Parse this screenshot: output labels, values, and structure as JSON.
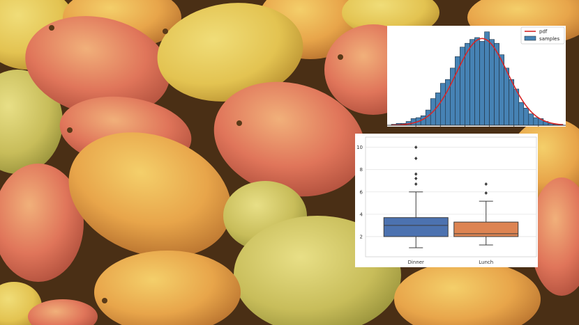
{
  "background": {
    "subject": "pile of ripe mangoes",
    "colors": {
      "yellow": "#e3c351",
      "orange": "#e48a3c",
      "red": "#d6584f",
      "green": "#9ea54a",
      "shadow": "#3a2612"
    }
  },
  "chart_data": [
    {
      "type": "bar",
      "subtype": "histogram-with-pdf",
      "title": "",
      "xlabel": "",
      "ylabel": "",
      "legend": {
        "placement": "top-right",
        "entries": [
          "pdf",
          "samples"
        ]
      },
      "colors": {
        "samples": "#4682b4",
        "pdf": "#d62728"
      },
      "grid": false,
      "series": [
        {
          "name": "samples",
          "type": "bar",
          "values": [
            1,
            2,
            2,
            4,
            7,
            8,
            10,
            16,
            28,
            34,
            44,
            48,
            60,
            72,
            82,
            86,
            90,
            92,
            88,
            98,
            90,
            86,
            74,
            60,
            48,
            38,
            24,
            18,
            12,
            8,
            7,
            4,
            2,
            1,
            1
          ]
        },
        {
          "name": "pdf",
          "type": "line",
          "mean_bin": 18,
          "sd_bins": 5.2,
          "peak": 91
        }
      ],
      "ylim": [
        0,
        100
      ]
    },
    {
      "type": "box",
      "title": "",
      "xlabel": "",
      "ylabel": "",
      "categories": [
        "Dinner",
        "Lunch"
      ],
      "yticks": [
        "2",
        "4",
        "6",
        "8",
        "10"
      ],
      "ylim": [
        0.5,
        10.6
      ],
      "grid": true,
      "colors": {
        "Dinner": "#4c72b0",
        "Lunch": "#dd8452"
      },
      "series": [
        {
          "name": "Dinner",
          "min": 1.0,
          "q1": 2.0,
          "median": 3.0,
          "q3": 3.7,
          "max": 6.0,
          "outliers": [
            6.7,
            7.2,
            7.6,
            9.0,
            10.0
          ]
        },
        {
          "name": "Lunch",
          "min": 1.25,
          "q1": 2.0,
          "median": 2.25,
          "q3": 3.3,
          "max": 5.17,
          "outliers": [
            5.9,
            6.7
          ]
        }
      ]
    }
  ]
}
